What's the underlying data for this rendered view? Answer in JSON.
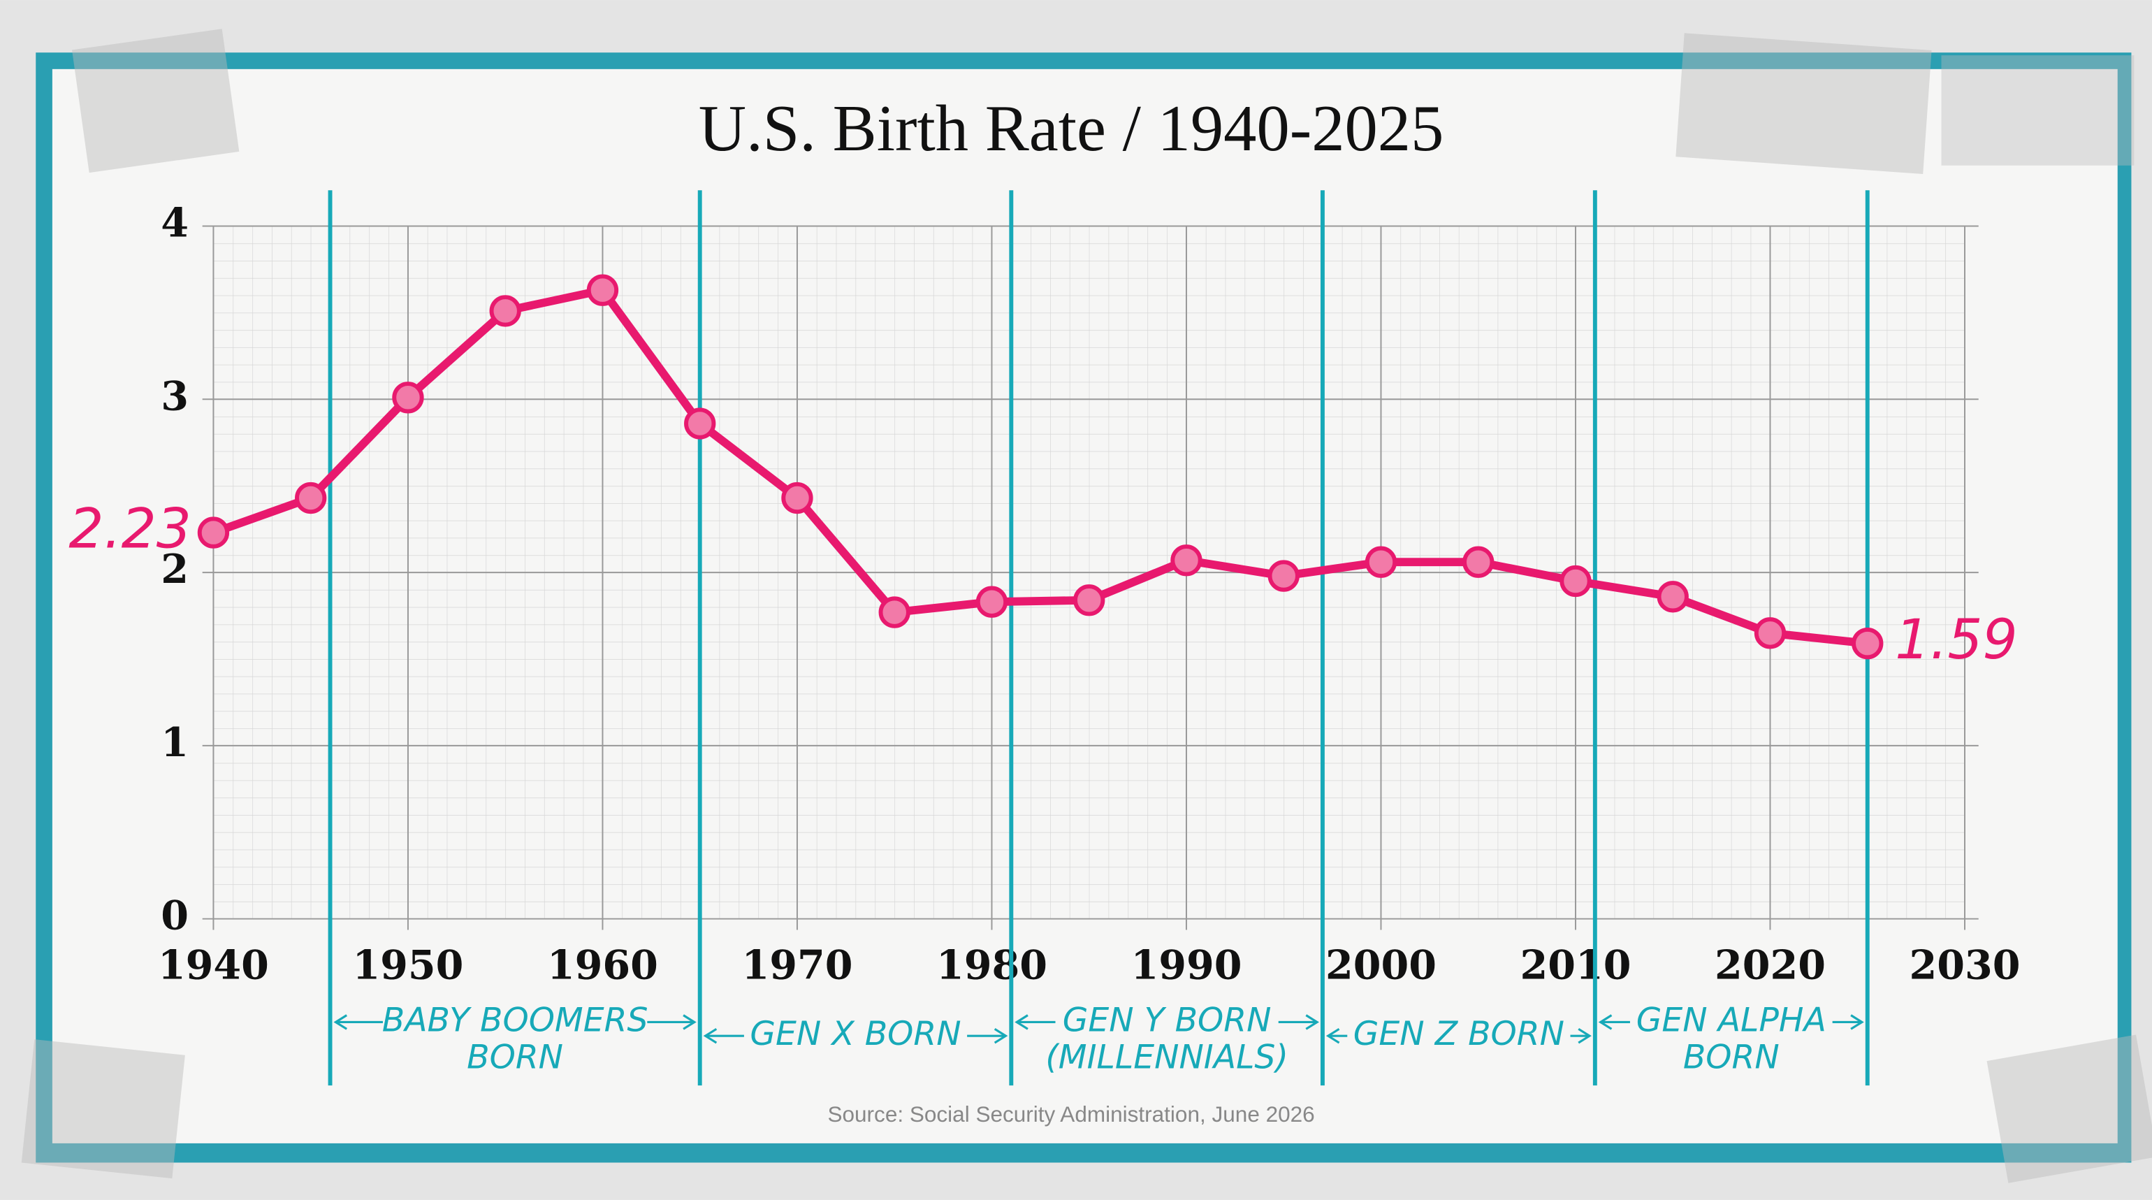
{
  "chart_data": {
    "type": "line",
    "title": "U.S. Birth Rate / 1940-2025",
    "source": "Source: Social Security Administration, June 2026",
    "x": [
      1940,
      1945,
      1950,
      1955,
      1960,
      1965,
      1970,
      1975,
      1980,
      1985,
      1990,
      1995,
      2000,
      2005,
      2010,
      2015,
      2020,
      2025
    ],
    "series": [
      {
        "name": "Birth rate",
        "color": "#e8196e",
        "values": [
          2.23,
          2.43,
          3.01,
          3.51,
          3.63,
          2.86,
          2.43,
          1.77,
          1.83,
          1.84,
          2.07,
          1.98,
          2.06,
          2.06,
          1.95,
          1.86,
          1.65,
          1.59
        ],
        "value_labels": [
          "2.23",
          null,
          null,
          null,
          null,
          null,
          null,
          null,
          null,
          null,
          null,
          null,
          null,
          null,
          null,
          null,
          null,
          "1.59"
        ]
      }
    ],
    "xlim": [
      1940,
      2030
    ],
    "xticks": [
      1940,
      1950,
      1960,
      1970,
      1980,
      1990,
      2000,
      2010,
      2020,
      2030
    ],
    "ylim": [
      0,
      4
    ],
    "yticks": [
      0,
      1,
      2,
      3,
      4
    ],
    "grid": true,
    "generation_color": "#17a9b8",
    "generations": [
      {
        "label": [
          "BABY BOOMERS",
          "BORN"
        ],
        "start": 1946,
        "end": 1965
      },
      {
        "label": [
          "GEN X BORN"
        ],
        "start": 1965,
        "end": 1981
      },
      {
        "label": [
          "GEN Y BORN",
          "(MILLENNIALS)"
        ],
        "start": 1981,
        "end": 1997
      },
      {
        "label": [
          "GEN Z BORN"
        ],
        "start": 1997,
        "end": 2011
      },
      {
        "label": [
          "GEN ALPHA",
          "BORN"
        ],
        "start": 2011,
        "end": 2025
      }
    ]
  }
}
